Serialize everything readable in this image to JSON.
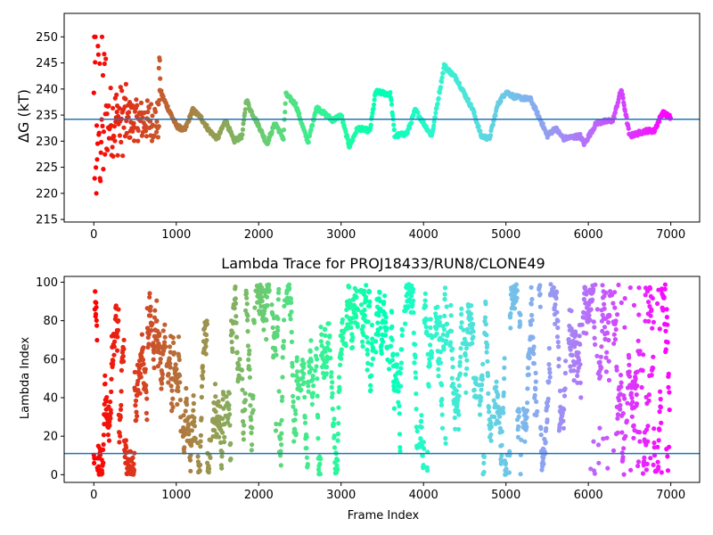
{
  "chart_data": [
    {
      "type": "scatter",
      "title": "",
      "xlabel": "",
      "ylabel": "ΔG (kT)",
      "xlim": [
        -360,
        7350
      ],
      "ylim": [
        214.5,
        254.5
      ],
      "xticks": [
        0,
        1000,
        2000,
        3000,
        4000,
        5000,
        6000,
        7000
      ],
      "yticks": [
        215,
        220,
        225,
        230,
        235,
        240,
        245,
        250
      ],
      "hline": 234.2,
      "hline_color": "#1f77b4",
      "colormap": "rainbow",
      "frames_max": 7000,
      "grid": false,
      "legend": "none",
      "keypoints": [
        [
          800,
          240
        ],
        [
          850,
          238
        ],
        [
          1000,
          233
        ],
        [
          1100,
          232
        ],
        [
          1200,
          236
        ],
        [
          1300,
          234.5
        ],
        [
          1400,
          232
        ],
        [
          1500,
          230.5
        ],
        [
          1600,
          234
        ],
        [
          1700,
          230
        ],
        [
          1800,
          231
        ],
        [
          1850,
          238
        ],
        [
          1900,
          236
        ],
        [
          2000,
          233
        ],
        [
          2100,
          229.5
        ],
        [
          2200,
          233.5
        ],
        [
          2300,
          230.5
        ],
        [
          2330,
          239
        ],
        [
          2450,
          237
        ],
        [
          2550,
          232
        ],
        [
          2600,
          229.8
        ],
        [
          2700,
          236.5
        ],
        [
          2900,
          234
        ],
        [
          3000,
          235
        ],
        [
          3100,
          229
        ],
        [
          3200,
          232.5
        ],
        [
          3350,
          232
        ],
        [
          3420,
          239.5
        ],
        [
          3600,
          239
        ],
        [
          3650,
          231
        ],
        [
          3800,
          231.5
        ],
        [
          3900,
          236
        ],
        [
          4000,
          233.5
        ],
        [
          4100,
          231
        ],
        [
          4200,
          240
        ],
        [
          4250,
          244.5
        ],
        [
          4400,
          242
        ],
        [
          4600,
          236
        ],
        [
          4700,
          231
        ],
        [
          4800,
          230.5
        ],
        [
          4900,
          237
        ],
        [
          5000,
          239.5
        ],
        [
          5100,
          238.5
        ],
        [
          5300,
          238
        ],
        [
          5450,
          233
        ],
        [
          5500,
          231
        ],
        [
          5600,
          232.5
        ],
        [
          5700,
          230.5
        ],
        [
          5900,
          231
        ],
        [
          5950,
          229.5
        ],
        [
          6100,
          233.5
        ],
        [
          6300,
          234
        ],
        [
          6400,
          240
        ],
        [
          6500,
          231
        ],
        [
          6700,
          232
        ],
        [
          6800,
          232
        ],
        [
          6900,
          235.5
        ],
        [
          7000,
          234.5
        ]
      ]
    },
    {
      "type": "scatter",
      "title": "Lambda Trace for PROJ18433/RUN8/CLONE49",
      "xlabel": "Frame Index",
      "ylabel": "Lambda Index",
      "xlim": [
        -360,
        7350
      ],
      "ylim": [
        -4,
        103
      ],
      "xticks": [
        0,
        1000,
        2000,
        3000,
        4000,
        5000,
        6000,
        7000
      ],
      "yticks": [
        0,
        20,
        40,
        60,
        80,
        100
      ],
      "hline": 11,
      "hline_color": "#1f77b4",
      "colormap": "rainbow",
      "frames_max": 7000,
      "lambda_range": [
        0,
        99
      ],
      "grid": false,
      "legend": "none"
    }
  ]
}
